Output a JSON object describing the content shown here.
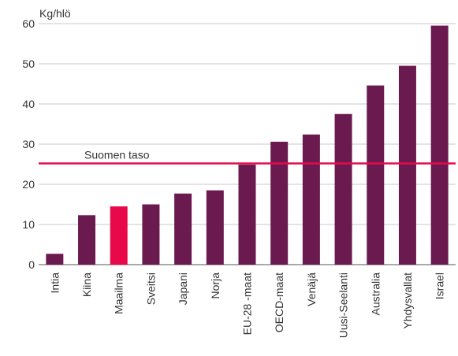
{
  "chart_data": {
    "type": "bar",
    "ylabel": "Kg/hlö",
    "ylim": [
      0,
      60
    ],
    "yticks": [
      0,
      10,
      20,
      30,
      40,
      50,
      60
    ],
    "grid": true,
    "categories": [
      "Intia",
      "Kiina",
      "Maailma",
      "Sveitsi",
      "Japani",
      "Norja",
      "EU-28 -maat",
      "OECD-maat",
      "Venäjä",
      "Uusi-Seelanti",
      "Australia",
      "Yhdysvallat",
      "Israel"
    ],
    "values": [
      2.7,
      12.3,
      14.5,
      15.0,
      17.7,
      18.5,
      24.9,
      30.6,
      32.4,
      37.5,
      44.6,
      49.5,
      59.5
    ],
    "highlight": [
      "Maailma"
    ],
    "reference_line": {
      "label": "Suomen taso",
      "value": 25.2
    },
    "colors": {
      "bar": "#6b1a4f",
      "highlight": "#e8094a",
      "reference": "#e8094a",
      "grid": "#c8c8c8",
      "axis": "#555555"
    }
  }
}
